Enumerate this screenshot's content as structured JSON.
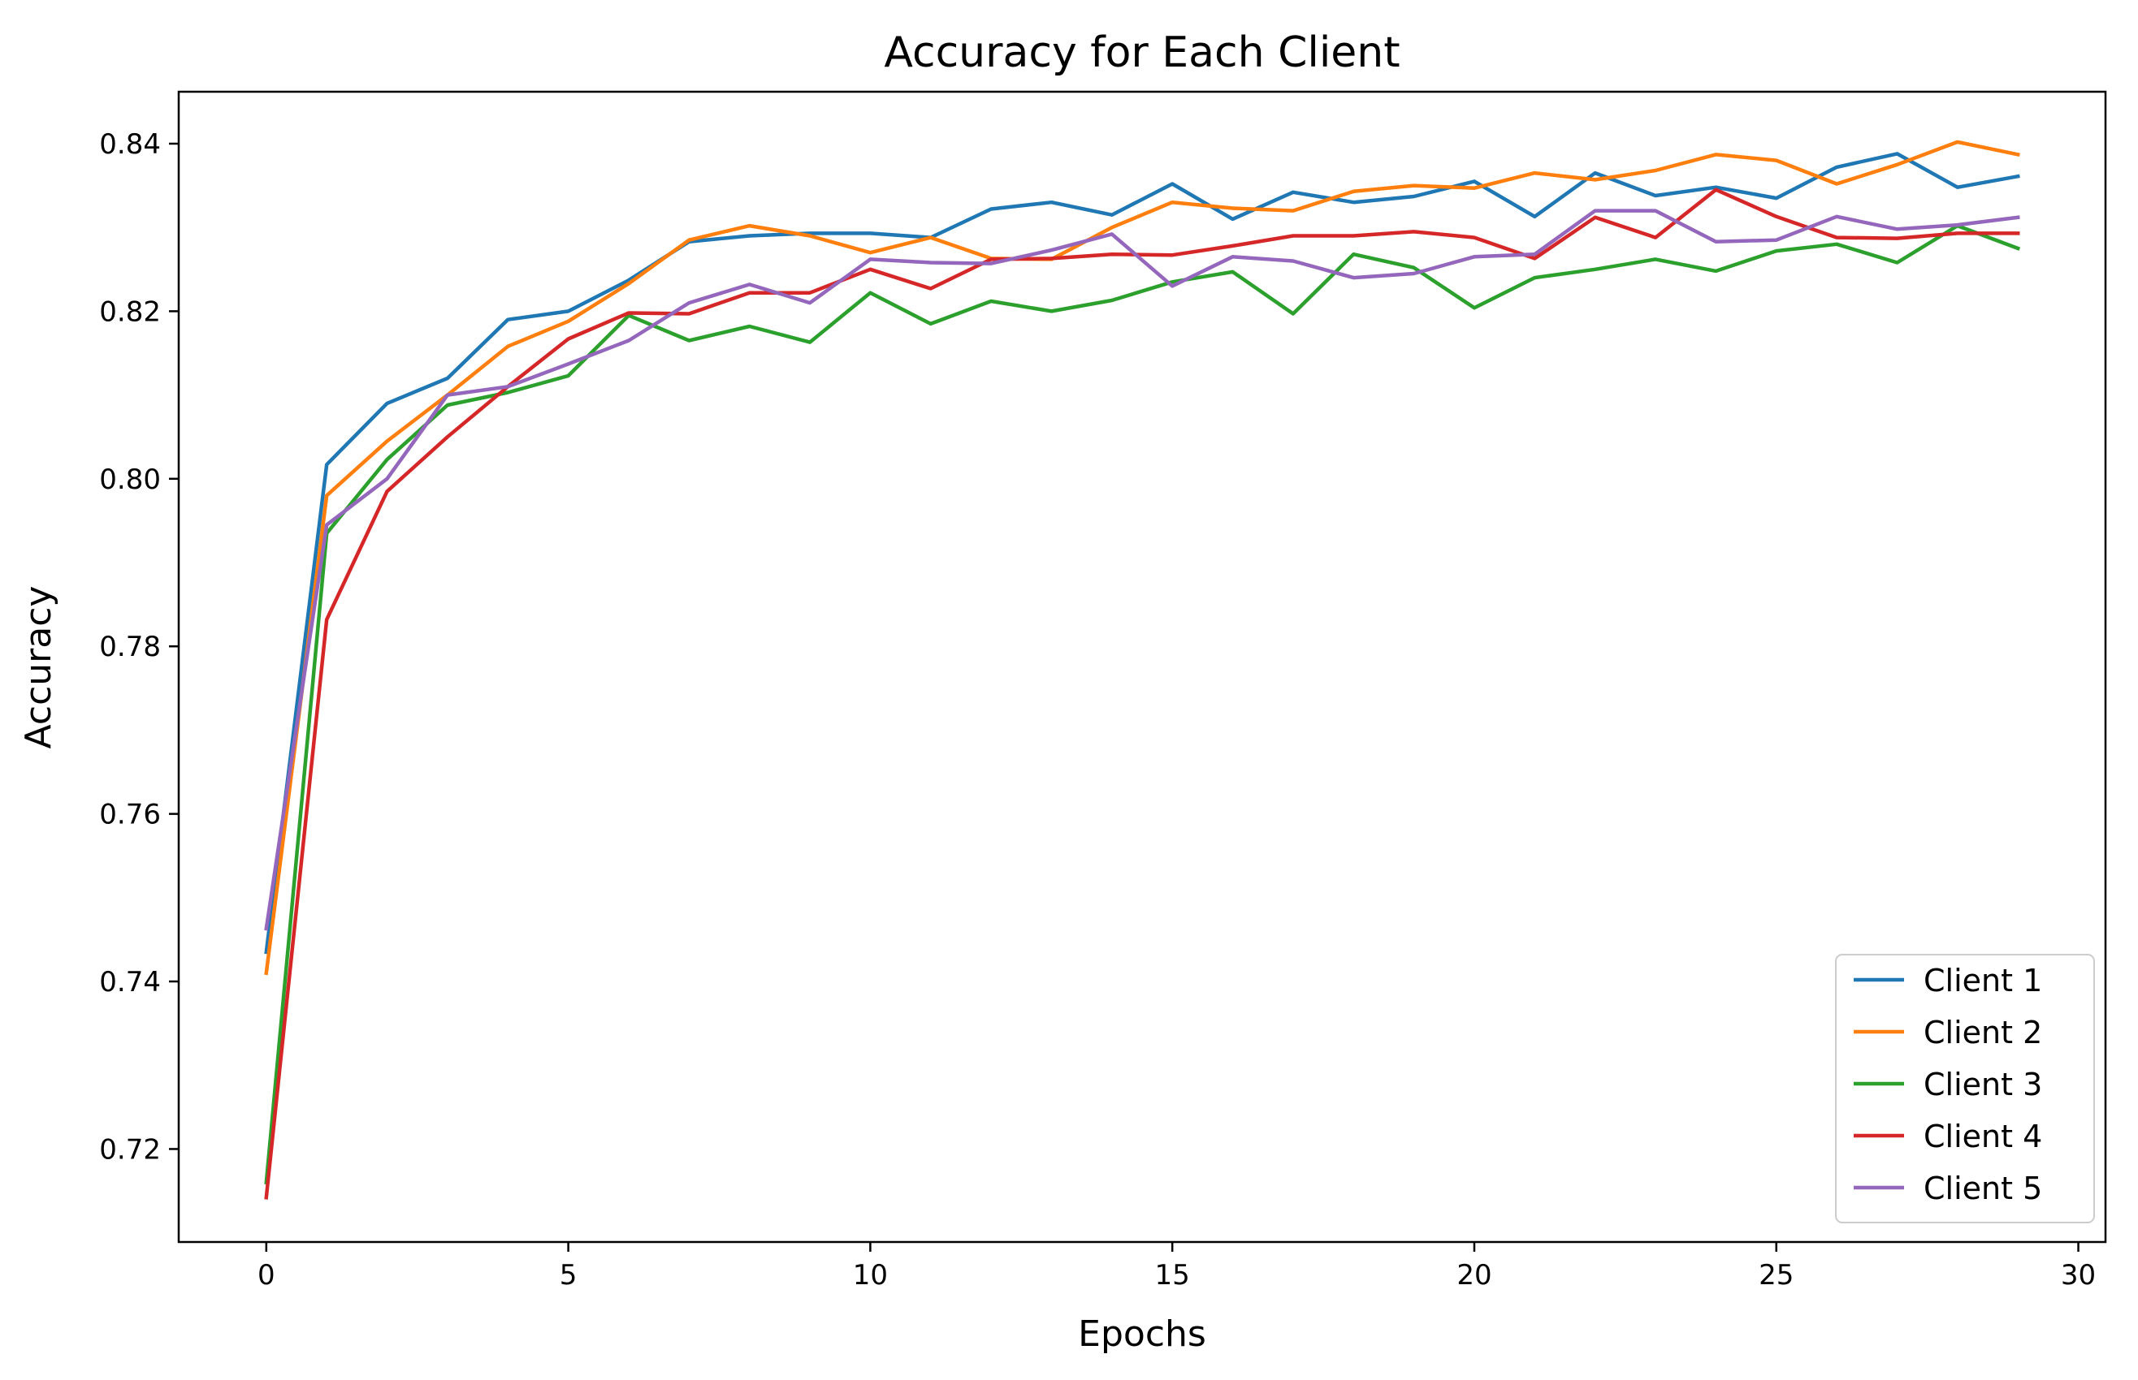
{
  "chart_data": {
    "type": "line",
    "title": "Accuracy for Each Client",
    "xlabel": "Epochs",
    "ylabel": "Accuracy",
    "xlim": [
      -1.45,
      30.45
    ],
    "ylim": [
      0.7089,
      0.8462
    ],
    "x_ticks": [
      0,
      5,
      10,
      15,
      20,
      25,
      30
    ],
    "y_ticks": [
      0.72,
      0.74,
      0.76,
      0.78,
      0.8,
      0.82,
      0.84
    ],
    "x_tick_labels": [
      "0",
      "5",
      "10",
      "15",
      "20",
      "25",
      "30"
    ],
    "y_tick_labels": [
      "0.72",
      "0.74",
      "0.76",
      "0.78",
      "0.80",
      "0.82",
      "0.84"
    ],
    "grid": false,
    "legend_position": "lower-right",
    "x": [
      0,
      1,
      2,
      3,
      4,
      5,
      6,
      7,
      8,
      9,
      10,
      11,
      12,
      13,
      14,
      15,
      16,
      17,
      18,
      19,
      20,
      21,
      22,
      23,
      24,
      25,
      26,
      27,
      28,
      29
    ],
    "series": [
      {
        "name": "Client 1",
        "color": "#1f77b4",
        "values": [
          0.7435,
          0.8017,
          0.809,
          0.812,
          0.819,
          0.82,
          0.8237,
          0.8283,
          0.829,
          0.8293,
          0.8293,
          0.8288,
          0.8322,
          0.833,
          0.8315,
          0.8352,
          0.831,
          0.8342,
          0.833,
          0.8337,
          0.8355,
          0.8313,
          0.8365,
          0.8338,
          0.8348,
          0.8335,
          0.8372,
          0.8388,
          0.8348,
          0.8361
        ]
      },
      {
        "name": "Client 2",
        "color": "#ff7f0e",
        "values": [
          0.741,
          0.798,
          0.8045,
          0.81,
          0.8158,
          0.8188,
          0.8233,
          0.8285,
          0.8302,
          0.829,
          0.827,
          0.8288,
          0.8263,
          0.8262,
          0.83,
          0.833,
          0.8323,
          0.832,
          0.8343,
          0.835,
          0.8347,
          0.8365,
          0.8357,
          0.8368,
          0.8387,
          0.838,
          0.8352,
          0.8375,
          0.8402,
          0.8387
        ]
      },
      {
        "name": "Client 3",
        "color": "#2ca02c",
        "values": [
          0.716,
          0.7935,
          0.8023,
          0.8088,
          0.8103,
          0.8123,
          0.8195,
          0.8165,
          0.8182,
          0.8163,
          0.8222,
          0.8185,
          0.8212,
          0.82,
          0.8213,
          0.8235,
          0.8247,
          0.8197,
          0.8268,
          0.8252,
          0.8204,
          0.824,
          0.825,
          0.8262,
          0.8248,
          0.8272,
          0.828,
          0.8258,
          0.8302,
          0.8275
        ]
      },
      {
        "name": "Client 4",
        "color": "#d62728",
        "values": [
          0.7142,
          0.7832,
          0.7985,
          0.805,
          0.811,
          0.8167,
          0.8198,
          0.8197,
          0.8222,
          0.8222,
          0.825,
          0.8227,
          0.8262,
          0.8263,
          0.8268,
          0.8267,
          0.8278,
          0.829,
          0.829,
          0.8295,
          0.8288,
          0.8263,
          0.8312,
          0.8288,
          0.8345,
          0.8313,
          0.8288,
          0.8287,
          0.8293,
          0.8293
        ]
      },
      {
        "name": "Client 5",
        "color": "#9467bd",
        "values": [
          0.7463,
          0.7945,
          0.8,
          0.81,
          0.811,
          0.8137,
          0.8165,
          0.821,
          0.8232,
          0.821,
          0.8262,
          0.8258,
          0.8257,
          0.8273,
          0.8292,
          0.823,
          0.8265,
          0.826,
          0.824,
          0.8245,
          0.8265,
          0.8268,
          0.832,
          0.832,
          0.8283,
          0.8285,
          0.8313,
          0.8298,
          0.8303,
          0.8312
        ]
      }
    ]
  }
}
